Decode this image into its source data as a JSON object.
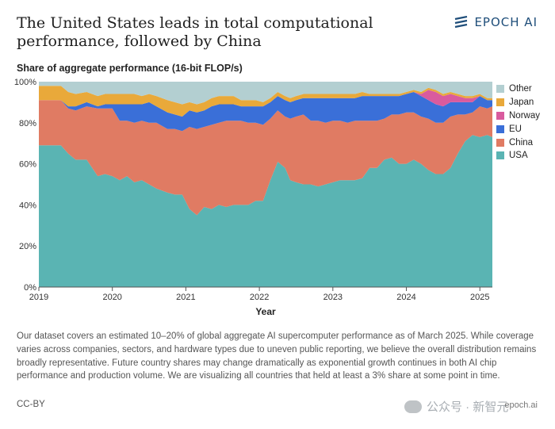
{
  "header": {
    "title": "The United States leads in total computational performance, followed by China",
    "brand": "EPOCH AI"
  },
  "chart_data": {
    "type": "area",
    "stacked": true,
    "title": "The United States leads in total computational performance, followed by China",
    "subtitle": "Share of aggregate performance (16-bit FLOP/s)",
    "xlabel": "Year",
    "ylabel": "",
    "x_ticks": [
      "2019",
      "2020",
      "2021",
      "2022",
      "2023",
      "2024",
      "2025"
    ],
    "y_ticks": [
      "0%",
      "20%",
      "40%",
      "60%",
      "80%",
      "100%"
    ],
    "xlim": [
      2019.0,
      2025.17
    ],
    "ylim": [
      0,
      100
    ],
    "legend_position": "right",
    "x": [
      2019.0,
      2019.15,
      2019.3,
      2019.4,
      2019.5,
      2019.65,
      2019.8,
      2019.9,
      2020.0,
      2020.1,
      2020.2,
      2020.3,
      2020.4,
      2020.5,
      2020.6,
      2020.75,
      2020.85,
      2020.95,
      2021.05,
      2021.15,
      2021.25,
      2021.35,
      2021.45,
      2021.55,
      2021.65,
      2021.75,
      2021.85,
      2021.95,
      2022.05,
      2022.15,
      2022.25,
      2022.35,
      2022.42,
      2022.5,
      2022.6,
      2022.7,
      2022.8,
      2022.9,
      2023.0,
      2023.1,
      2023.2,
      2023.3,
      2023.4,
      2023.5,
      2023.6,
      2023.7,
      2023.8,
      2023.9,
      2024.0,
      2024.1,
      2024.2,
      2024.3,
      2024.4,
      2024.5,
      2024.6,
      2024.7,
      2024.8,
      2024.9,
      2025.0,
      2025.1,
      2025.17
    ],
    "series": [
      {
        "name": "USA",
        "color": "#5ab4b3",
        "values": [
          69,
          69,
          69,
          65,
          62,
          62,
          54,
          55,
          54,
          52,
          54,
          51,
          52,
          50,
          48,
          46,
          45,
          45,
          38,
          35,
          39,
          38,
          40,
          39,
          40,
          40,
          40,
          42,
          42,
          52,
          61,
          58,
          52,
          51,
          50,
          50,
          49,
          50,
          51,
          52,
          52,
          52,
          53,
          58,
          58,
          62,
          63,
          60,
          60,
          62,
          60,
          57,
          55,
          55,
          58,
          65,
          71,
          74,
          73,
          74,
          73
        ]
      },
      {
        "name": "China",
        "color": "#e07b63",
        "values": [
          22,
          22,
          22,
          22,
          24,
          26,
          33,
          32,
          33,
          29,
          27,
          29,
          29,
          30,
          32,
          31,
          32,
          31,
          40,
          42,
          39,
          41,
          40,
          42,
          41,
          41,
          40,
          38,
          37,
          30,
          25,
          25,
          30,
          32,
          34,
          31,
          32,
          30,
          30,
          29,
          28,
          29,
          28,
          23,
          23,
          20,
          21,
          24,
          25,
          23,
          23,
          25,
          25,
          25,
          25,
          19,
          13,
          11,
          15,
          13,
          15
        ]
      },
      {
        "name": "EU",
        "color": "#3a6fd8",
        "values": [
          0,
          0,
          0,
          1,
          2,
          2,
          1,
          2,
          2,
          8,
          8,
          9,
          8,
          10,
          8,
          8,
          7,
          7,
          8,
          8,
          8,
          9,
          9,
          8,
          8,
          7,
          8,
          8,
          9,
          8,
          7,
          8,
          8,
          8,
          8,
          11,
          11,
          12,
          11,
          11,
          12,
          11,
          12,
          12,
          12,
          11,
          9,
          9,
          9,
          10,
          10,
          9,
          9,
          8,
          7,
          6,
          6,
          5,
          5,
          4,
          3
        ]
      },
      {
        "name": "Norway",
        "color": "#d95b9e",
        "values": [
          0,
          0,
          0,
          0,
          0,
          0,
          0,
          0,
          0,
          0,
          0,
          0,
          0,
          0,
          0,
          0,
          0,
          0,
          0,
          0,
          0,
          0,
          0,
          0,
          0,
          0,
          0,
          0,
          0,
          0,
          0,
          0,
          0,
          0,
          0,
          0,
          0,
          0,
          0,
          0,
          0,
          0,
          0,
          0,
          0,
          0,
          0,
          0,
          0,
          0,
          1,
          5,
          6,
          5,
          4,
          3,
          2,
          2,
          0,
          0,
          0
        ]
      },
      {
        "name": "Japan",
        "color": "#e9a93a",
        "values": [
          7,
          7,
          7,
          7,
          6,
          5,
          5,
          5,
          5,
          5,
          5,
          5,
          4,
          4,
          5,
          6,
          6,
          6,
          4,
          4,
          4,
          4,
          4,
          4,
          4,
          3,
          3,
          3,
          2,
          2,
          2,
          2,
          2,
          2,
          2,
          2,
          2,
          2,
          2,
          2,
          2,
          2,
          2,
          1,
          1,
          1,
          1,
          1,
          1,
          1,
          1,
          1,
          1,
          1,
          1,
          1,
          1,
          1,
          1,
          1,
          1
        ]
      },
      {
        "name": "Other",
        "color": "#b3cfd1",
        "values": [
          2,
          2,
          2,
          5,
          6,
          5,
          7,
          6,
          6,
          6,
          6,
          6,
          7,
          6,
          7,
          9,
          10,
          11,
          10,
          11,
          10,
          8,
          7,
          7,
          7,
          9,
          9,
          9,
          10,
          8,
          5,
          7,
          8,
          7,
          6,
          6,
          6,
          6,
          6,
          6,
          6,
          6,
          5,
          6,
          6,
          6,
          6,
          6,
          5,
          4,
          5,
          3,
          4,
          6,
          5,
          6,
          7,
          7,
          6,
          8,
          8
        ]
      }
    ]
  },
  "legend_items": [
    {
      "label": "Other",
      "color": "#b3cfd1"
    },
    {
      "label": "Japan",
      "color": "#e9a93a"
    },
    {
      "label": "Norway",
      "color": "#d95b9e"
    },
    {
      "label": "EU",
      "color": "#3a6fd8"
    },
    {
      "label": "China",
      "color": "#e07b63"
    },
    {
      "label": "USA",
      "color": "#5ab4b3"
    }
  ],
  "footer": {
    "note": "Our dataset covers an estimated 10–20% of global aggregate AI supercomputer performance as of March 2025. While coverage varies across companies, sectors, and hardware types due to uneven public reporting, we believe the overall distribution remains broadly representative. Future country shares may change dramatically as exponential growth continues in both AI chip performance and production volume. We are visualizing all countries that held at least a 3% share at some point in time.",
    "license": "CC-BY",
    "site": "epoch.ai",
    "watermark": "公众号 · 新智元"
  }
}
